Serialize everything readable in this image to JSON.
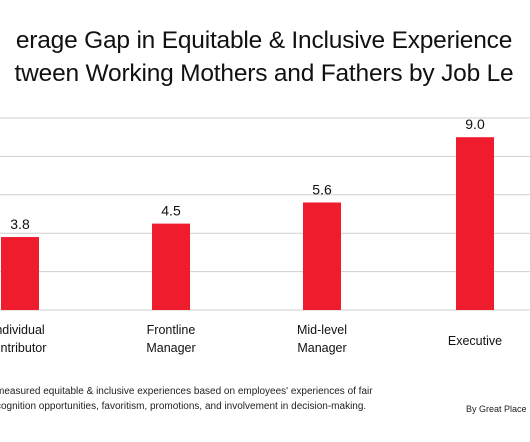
{
  "title_line1": "erage Gap in Equitable & Inclusive Experience",
  "title_line2": "tween Working Mothers and Fathers by Job Le",
  "footnote_line1": "measured equitable & inclusive experiences based on employees' experiences of fair",
  "footnote_line2": "cognition opportunities, favoritism, promotions, and involvement in decision-making.",
  "credit": "By Great Place",
  "colors": {
    "bar": "#ef1c2e",
    "grid": "#cfcfcf"
  },
  "chart_data": {
    "type": "bar",
    "categories": [
      [
        "ndividual",
        "ontributor"
      ],
      [
        "Frontline",
        "Manager"
      ],
      [
        "Mid-level",
        "Manager"
      ],
      [
        "Executive"
      ]
    ],
    "values": [
      3.8,
      4.5,
      5.6,
      9.0
    ],
    "value_labels": [
      "3.8",
      "4.5",
      "5.6",
      "9.0"
    ],
    "ylim": [
      0,
      10
    ],
    "grid": true
  }
}
